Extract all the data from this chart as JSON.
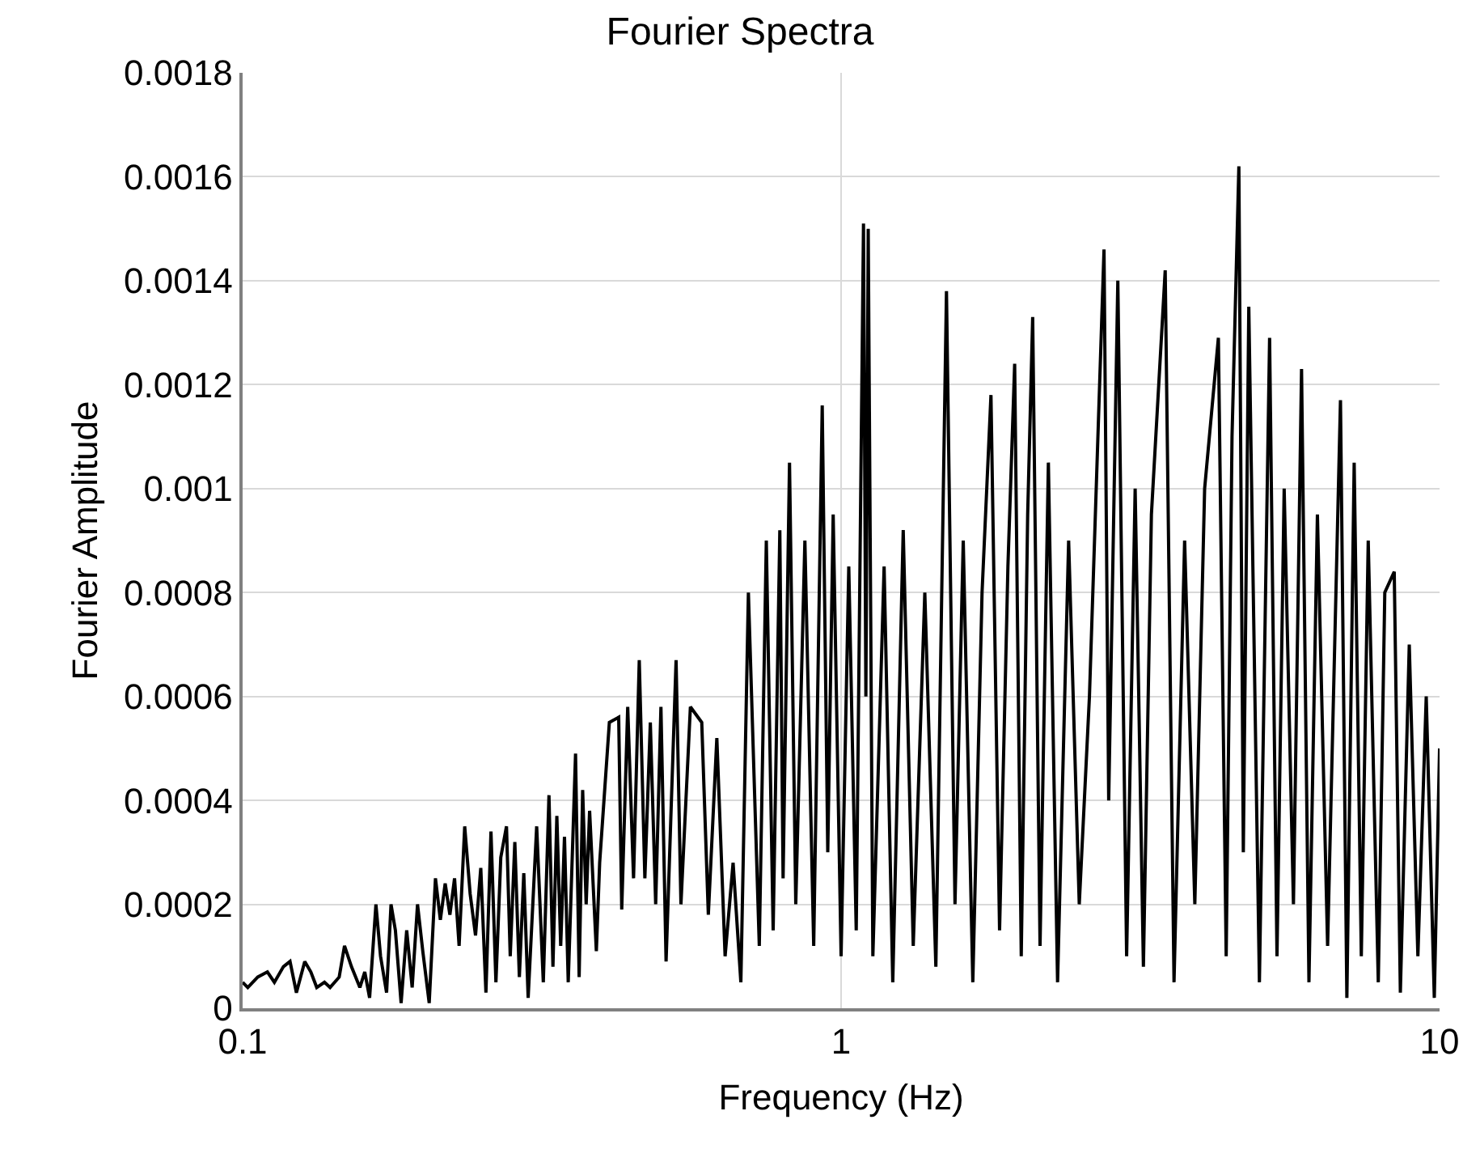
{
  "chart_data": {
    "type": "line",
    "title": "Fourier Spectra",
    "xlabel": "Frequency (Hz)",
    "ylabel": "Fourier Amplitude",
    "log": "x",
    "grid": true,
    "marker": "none",
    "line_style": "solid",
    "xlim": [
      0.1,
      10
    ],
    "xticks": [
      0.1,
      1,
      10
    ],
    "ylim": [
      0,
      0.0018
    ],
    "yticks": [
      0,
      0.0002,
      0.0004,
      0.0006,
      0.0008,
      0.001,
      0.0012,
      0.0014,
      0.0016,
      0.0018
    ],
    "series": [
      {
        "color": "#000000",
        "x": [
          0.1,
          0.102,
          0.106,
          0.11,
          0.113,
          0.117,
          0.12,
          0.123,
          0.127,
          0.13,
          0.133,
          0.137,
          0.14,
          0.145,
          0.148,
          0.152,
          0.157,
          0.16,
          0.163,
          0.167,
          0.17,
          0.174,
          0.177,
          0.18,
          0.184,
          0.188,
          0.192,
          0.196,
          0.2,
          0.205,
          0.21,
          0.214,
          0.218,
          0.222,
          0.226,
          0.23,
          0.235,
          0.24,
          0.245,
          0.25,
          0.255,
          0.26,
          0.265,
          0.27,
          0.276,
          0.28,
          0.285,
          0.29,
          0.295,
          0.3,
          0.31,
          0.318,
          0.325,
          0.33,
          0.335,
          0.34,
          0.345,
          0.35,
          0.36,
          0.365,
          0.37,
          0.375,
          0.38,
          0.39,
          0.395,
          0.41,
          0.425,
          0.43,
          0.44,
          0.45,
          0.46,
          0.47,
          0.48,
          0.49,
          0.5,
          0.51,
          0.53,
          0.54,
          0.56,
          0.585,
          0.6,
          0.62,
          0.64,
          0.66,
          0.68,
          0.7,
          0.73,
          0.75,
          0.77,
          0.79,
          0.8,
          0.82,
          0.84,
          0.87,
          0.9,
          0.93,
          0.95,
          0.97,
          1.0,
          1.03,
          1.06,
          1.09,
          1.1,
          1.11,
          1.13,
          1.18,
          1.22,
          1.27,
          1.32,
          1.38,
          1.44,
          1.5,
          1.55,
          1.6,
          1.66,
          1.72,
          1.78,
          1.84,
          1.9,
          1.95,
          2.0,
          2.05,
          2.09,
          2.15,
          2.22,
          2.3,
          2.4,
          2.5,
          2.6,
          2.75,
          2.8,
          2.9,
          3.0,
          3.1,
          3.2,
          3.3,
          3.48,
          3.6,
          3.75,
          3.9,
          4.05,
          4.27,
          4.4,
          4.5,
          4.62,
          4.7,
          4.8,
          5.0,
          5.2,
          5.35,
          5.5,
          5.7,
          5.88,
          6.05,
          6.25,
          6.5,
          6.83,
          7.0,
          7.2,
          7.4,
          7.6,
          7.9,
          8.1,
          8.4,
          8.6,
          8.9,
          9.2,
          9.5,
          9.8,
          10.0
        ],
        "values": [
          5e-05,
          4e-05,
          6e-05,
          7e-05,
          5e-05,
          8e-05,
          9e-05,
          3e-05,
          9e-05,
          7e-05,
          4e-05,
          5e-05,
          4e-05,
          6e-05,
          0.00012,
          8e-05,
          4e-05,
          7e-05,
          2e-05,
          0.0002,
          0.0001,
          3e-05,
          0.0002,
          0.00015,
          1e-05,
          0.00015,
          4e-05,
          0.0002,
          0.00011,
          1e-05,
          0.00025,
          0.00017,
          0.00024,
          0.00018,
          0.00025,
          0.00012,
          0.00035,
          0.00022,
          0.00014,
          0.00027,
          3e-05,
          0.00034,
          5e-05,
          0.00029,
          0.00035,
          0.0001,
          0.00032,
          6e-05,
          0.00026,
          2e-05,
          0.00035,
          5e-05,
          0.00041,
          8e-05,
          0.00037,
          0.00012,
          0.00033,
          5e-05,
          0.00049,
          6e-05,
          0.00042,
          0.0002,
          0.00038,
          0.00011,
          0.00028,
          0.00055,
          0.00056,
          0.00019,
          0.00058,
          0.00025,
          0.00067,
          0.00025,
          0.00055,
          0.0002,
          0.00058,
          9e-05,
          0.00067,
          0.0002,
          0.00058,
          0.00055,
          0.00018,
          0.00052,
          0.0001,
          0.00028,
          5e-05,
          0.0008,
          0.00012,
          0.0009,
          0.00015,
          0.00092,
          0.00025,
          0.00105,
          0.0002,
          0.0009,
          0.00012,
          0.00116,
          0.0003,
          0.00095,
          0.0001,
          0.00085,
          0.00015,
          0.00151,
          0.0006,
          0.0015,
          0.0001,
          0.00085,
          5e-05,
          0.00092,
          0.00012,
          0.0008,
          8e-05,
          0.00138,
          0.0002,
          0.0009,
          5e-05,
          0.0008,
          0.00118,
          0.00015,
          0.00085,
          0.00124,
          0.0001,
          0.00095,
          0.00133,
          0.00012,
          0.00105,
          5e-05,
          0.0009,
          0.0002,
          0.0006,
          0.00146,
          0.0004,
          0.0014,
          0.0001,
          0.001,
          8e-05,
          0.00095,
          0.00142,
          5e-05,
          0.0009,
          0.0002,
          0.001,
          0.00129,
          0.0001,
          0.0011,
          0.00162,
          0.0003,
          0.00135,
          5e-05,
          0.00129,
          0.0001,
          0.001,
          0.0002,
          0.00123,
          5e-05,
          0.00095,
          0.00012,
          0.00117,
          2e-05,
          0.00105,
          0.0001,
          0.0009,
          5e-05,
          0.0008,
          0.00084,
          3e-05,
          0.0007,
          0.0001,
          0.0006,
          2e-05,
          0.0005
        ]
      }
    ]
  }
}
